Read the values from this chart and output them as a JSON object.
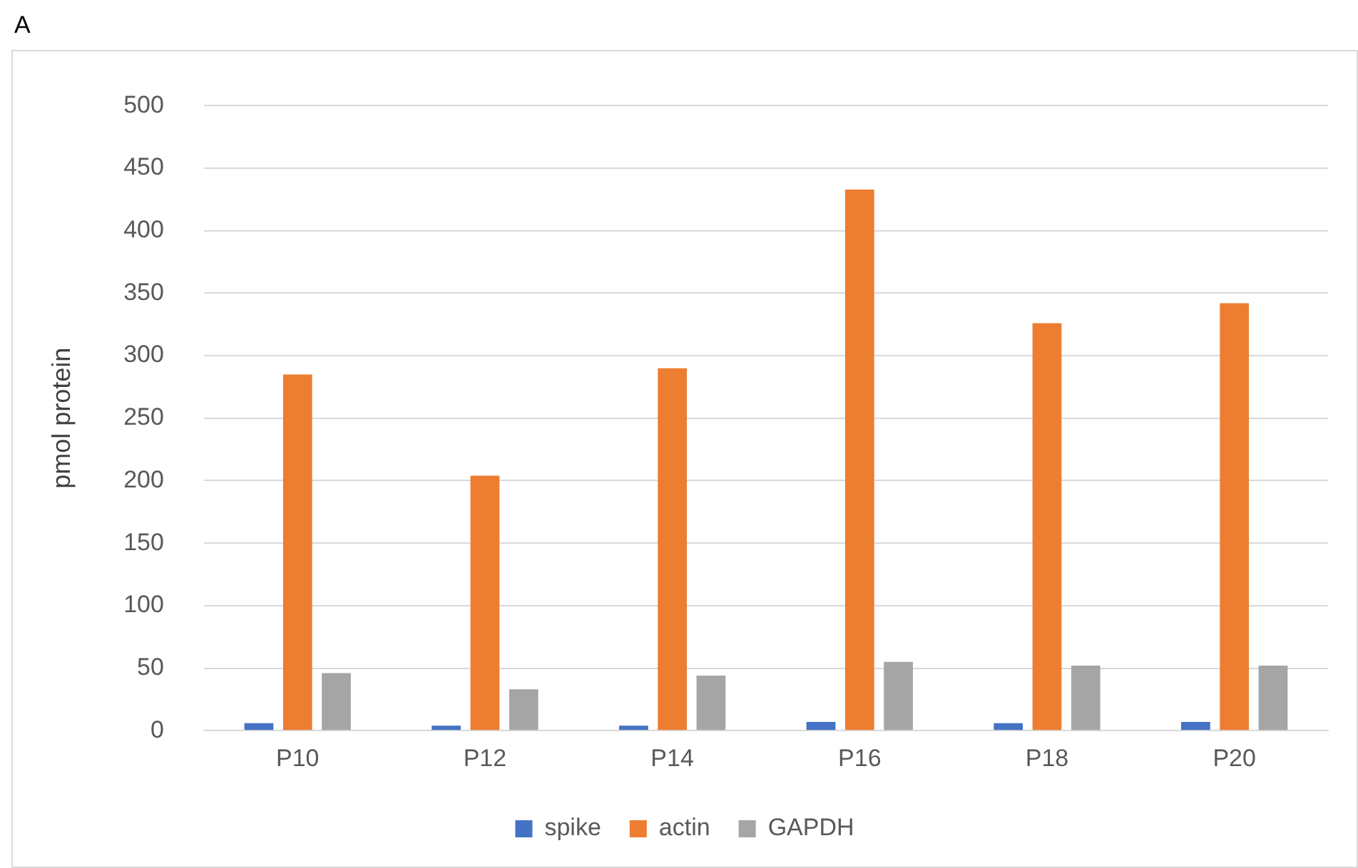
{
  "chart_data": {
    "type": "bar",
    "title": "A",
    "ylabel": "pmol protein",
    "categories": [
      "P10",
      "P12",
      "P14",
      "P16",
      "P18",
      "P20"
    ],
    "series": [
      {
        "name": "spike",
        "color": "#4472c4",
        "values": [
          6,
          4,
          4,
          7,
          6,
          7
        ]
      },
      {
        "name": "actin",
        "color": "#ed7d31",
        "values": [
          285,
          204,
          290,
          433,
          326,
          342
        ]
      },
      {
        "name": "GAPDH",
        "color": "#a5a5a5",
        "values": [
          46,
          33,
          44,
          55,
          52,
          52
        ]
      }
    ],
    "ylim": [
      0,
      500
    ],
    "yticks": [
      0,
      50,
      100,
      150,
      200,
      250,
      300,
      350,
      400,
      450,
      500
    ],
    "grid": "y",
    "legend": "bottom"
  }
}
